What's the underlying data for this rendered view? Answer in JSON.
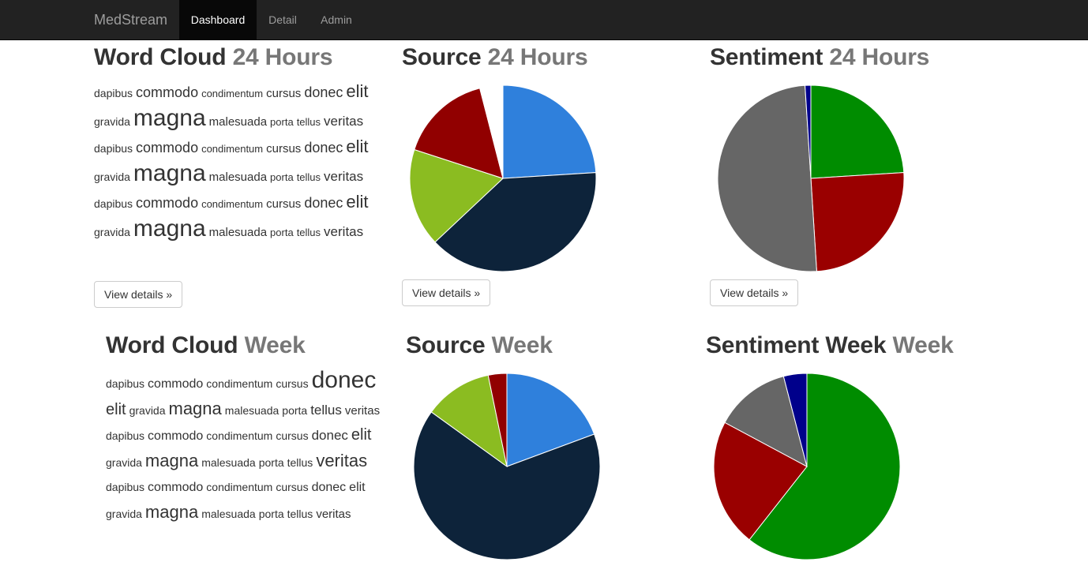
{
  "nav": {
    "brand": "MedStream",
    "items": [
      {
        "label": "Dashboard",
        "active": true
      },
      {
        "label": "Detail",
        "active": false
      },
      {
        "label": "Admin",
        "active": false
      }
    ]
  },
  "panels": {
    "wordcloud_24": {
      "title": "Word Cloud",
      "sub": "24 Hours",
      "button": "View details »"
    },
    "source_24": {
      "title": "Source",
      "sub": "24 Hours",
      "button": "View details »"
    },
    "sentiment_24": {
      "title": "Sentiment",
      "sub": "24 Hours",
      "button": "View details »"
    },
    "wordcloud_week": {
      "title": "Word Cloud",
      "sub": "Week"
    },
    "source_week": {
      "title": "Source",
      "sub": "Week"
    },
    "sentiment_week": {
      "title": "Sentiment Week",
      "sub": "Week"
    }
  },
  "word_clouds": {
    "cloud_24": [
      {
        "w": "dapibus",
        "s": 14
      },
      {
        "w": "commodo",
        "s": 18
      },
      {
        "w": "condimentum",
        "s": 13
      },
      {
        "w": "cursus",
        "s": 15
      },
      {
        "w": "donec",
        "s": 18
      },
      {
        "w": "elit",
        "s": 22
      },
      {
        "w": "gravida",
        "s": 14
      },
      {
        "w": "magna",
        "s": 30
      },
      {
        "w": "malesuada",
        "s": 15
      },
      {
        "w": "porta",
        "s": 13
      },
      {
        "w": "tellus",
        "s": 13
      },
      {
        "w": "veritas",
        "s": 17
      },
      {
        "w": "dapibus",
        "s": 14
      },
      {
        "w": "commodo",
        "s": 18
      },
      {
        "w": "condimentum",
        "s": 13
      },
      {
        "w": "cursus",
        "s": 15
      },
      {
        "w": "donec",
        "s": 18
      },
      {
        "w": "elit",
        "s": 22
      },
      {
        "w": "gravida",
        "s": 14
      },
      {
        "w": "magna",
        "s": 30
      },
      {
        "w": "malesuada",
        "s": 15
      },
      {
        "w": "porta",
        "s": 13
      },
      {
        "w": "tellus",
        "s": 13
      },
      {
        "w": "veritas",
        "s": 17
      },
      {
        "w": "dapibus",
        "s": 14
      },
      {
        "w": "commodo",
        "s": 18
      },
      {
        "w": "condimentum",
        "s": 13
      },
      {
        "w": "cursus",
        "s": 15
      },
      {
        "w": "donec",
        "s": 18
      },
      {
        "w": "elit",
        "s": 22
      },
      {
        "w": "gravida",
        "s": 14
      },
      {
        "w": "magna",
        "s": 30
      },
      {
        "w": "malesuada",
        "s": 15
      },
      {
        "w": "porta",
        "s": 13
      },
      {
        "w": "tellus",
        "s": 13
      },
      {
        "w": "veritas",
        "s": 17
      }
    ],
    "cloud_week": [
      {
        "w": "dapibus",
        "s": 14
      },
      {
        "w": "commodo",
        "s": 16
      },
      {
        "w": "condimentum",
        "s": 14
      },
      {
        "w": "cursus",
        "s": 14
      },
      {
        "w": "donec",
        "s": 30
      },
      {
        "w": "elit",
        "s": 20
      },
      {
        "w": "gravida",
        "s": 14
      },
      {
        "w": "magna",
        "s": 22
      },
      {
        "w": "malesuada",
        "s": 14
      },
      {
        "w": "porta",
        "s": 14
      },
      {
        "w": "tellus",
        "s": 17
      },
      {
        "w": "veritas",
        "s": 15
      },
      {
        "w": "dapibus",
        "s": 14
      },
      {
        "w": "commodo",
        "s": 16
      },
      {
        "w": "condimentum",
        "s": 14
      },
      {
        "w": "cursus",
        "s": 14
      },
      {
        "w": "donec",
        "s": 17
      },
      {
        "w": "elit",
        "s": 20
      },
      {
        "w": "gravida",
        "s": 14
      },
      {
        "w": "magna",
        "s": 22
      },
      {
        "w": "malesuada",
        "s": 14
      },
      {
        "w": "porta",
        "s": 14
      },
      {
        "w": "tellus",
        "s": 14
      },
      {
        "w": "veritas",
        "s": 22
      },
      {
        "w": "dapibus",
        "s": 14
      },
      {
        "w": "commodo",
        "s": 16
      },
      {
        "w": "condimentum",
        "s": 14
      },
      {
        "w": "cursus",
        "s": 14
      },
      {
        "w": "donec",
        "s": 16
      },
      {
        "w": "elit",
        "s": 16
      },
      {
        "w": "gravida",
        "s": 14
      },
      {
        "w": "magna",
        "s": 22
      },
      {
        "w": "malesuada",
        "s": 14
      },
      {
        "w": "porta",
        "s": 14
      },
      {
        "w": "tellus",
        "s": 14
      },
      {
        "w": "veritas",
        "s": 15
      }
    ]
  },
  "chart_data": [
    {
      "type": "pie",
      "series": [
        {
          "values": [
            24,
            39,
            17,
            16,
            4
          ],
          "colors": [
            "#2f80dc",
            "#0d233a",
            "#8bbc21",
            "#910000",
            "#ffffff"
          ]
        }
      ]
    },
    {
      "type": "pie",
      "series": [
        {
          "values": [
            24,
            25,
            50,
            1
          ],
          "colors": [
            "#008c00",
            "#9a0000",
            "#666666",
            "#00008b"
          ]
        }
      ]
    },
    {
      "type": "pie",
      "series": [
        {
          "values": [
            18,
            61,
            11,
            3
          ],
          "colors": [
            "#2f80dc",
            "#0d233a",
            "#8bbc21",
            "#910000"
          ]
        }
      ]
    },
    {
      "type": "pie",
      "series": [
        {
          "values": [
            60,
            22,
            13,
            4
          ],
          "colors": [
            "#008c00",
            "#9a0000",
            "#666666",
            "#00008b"
          ]
        }
      ]
    }
  ]
}
